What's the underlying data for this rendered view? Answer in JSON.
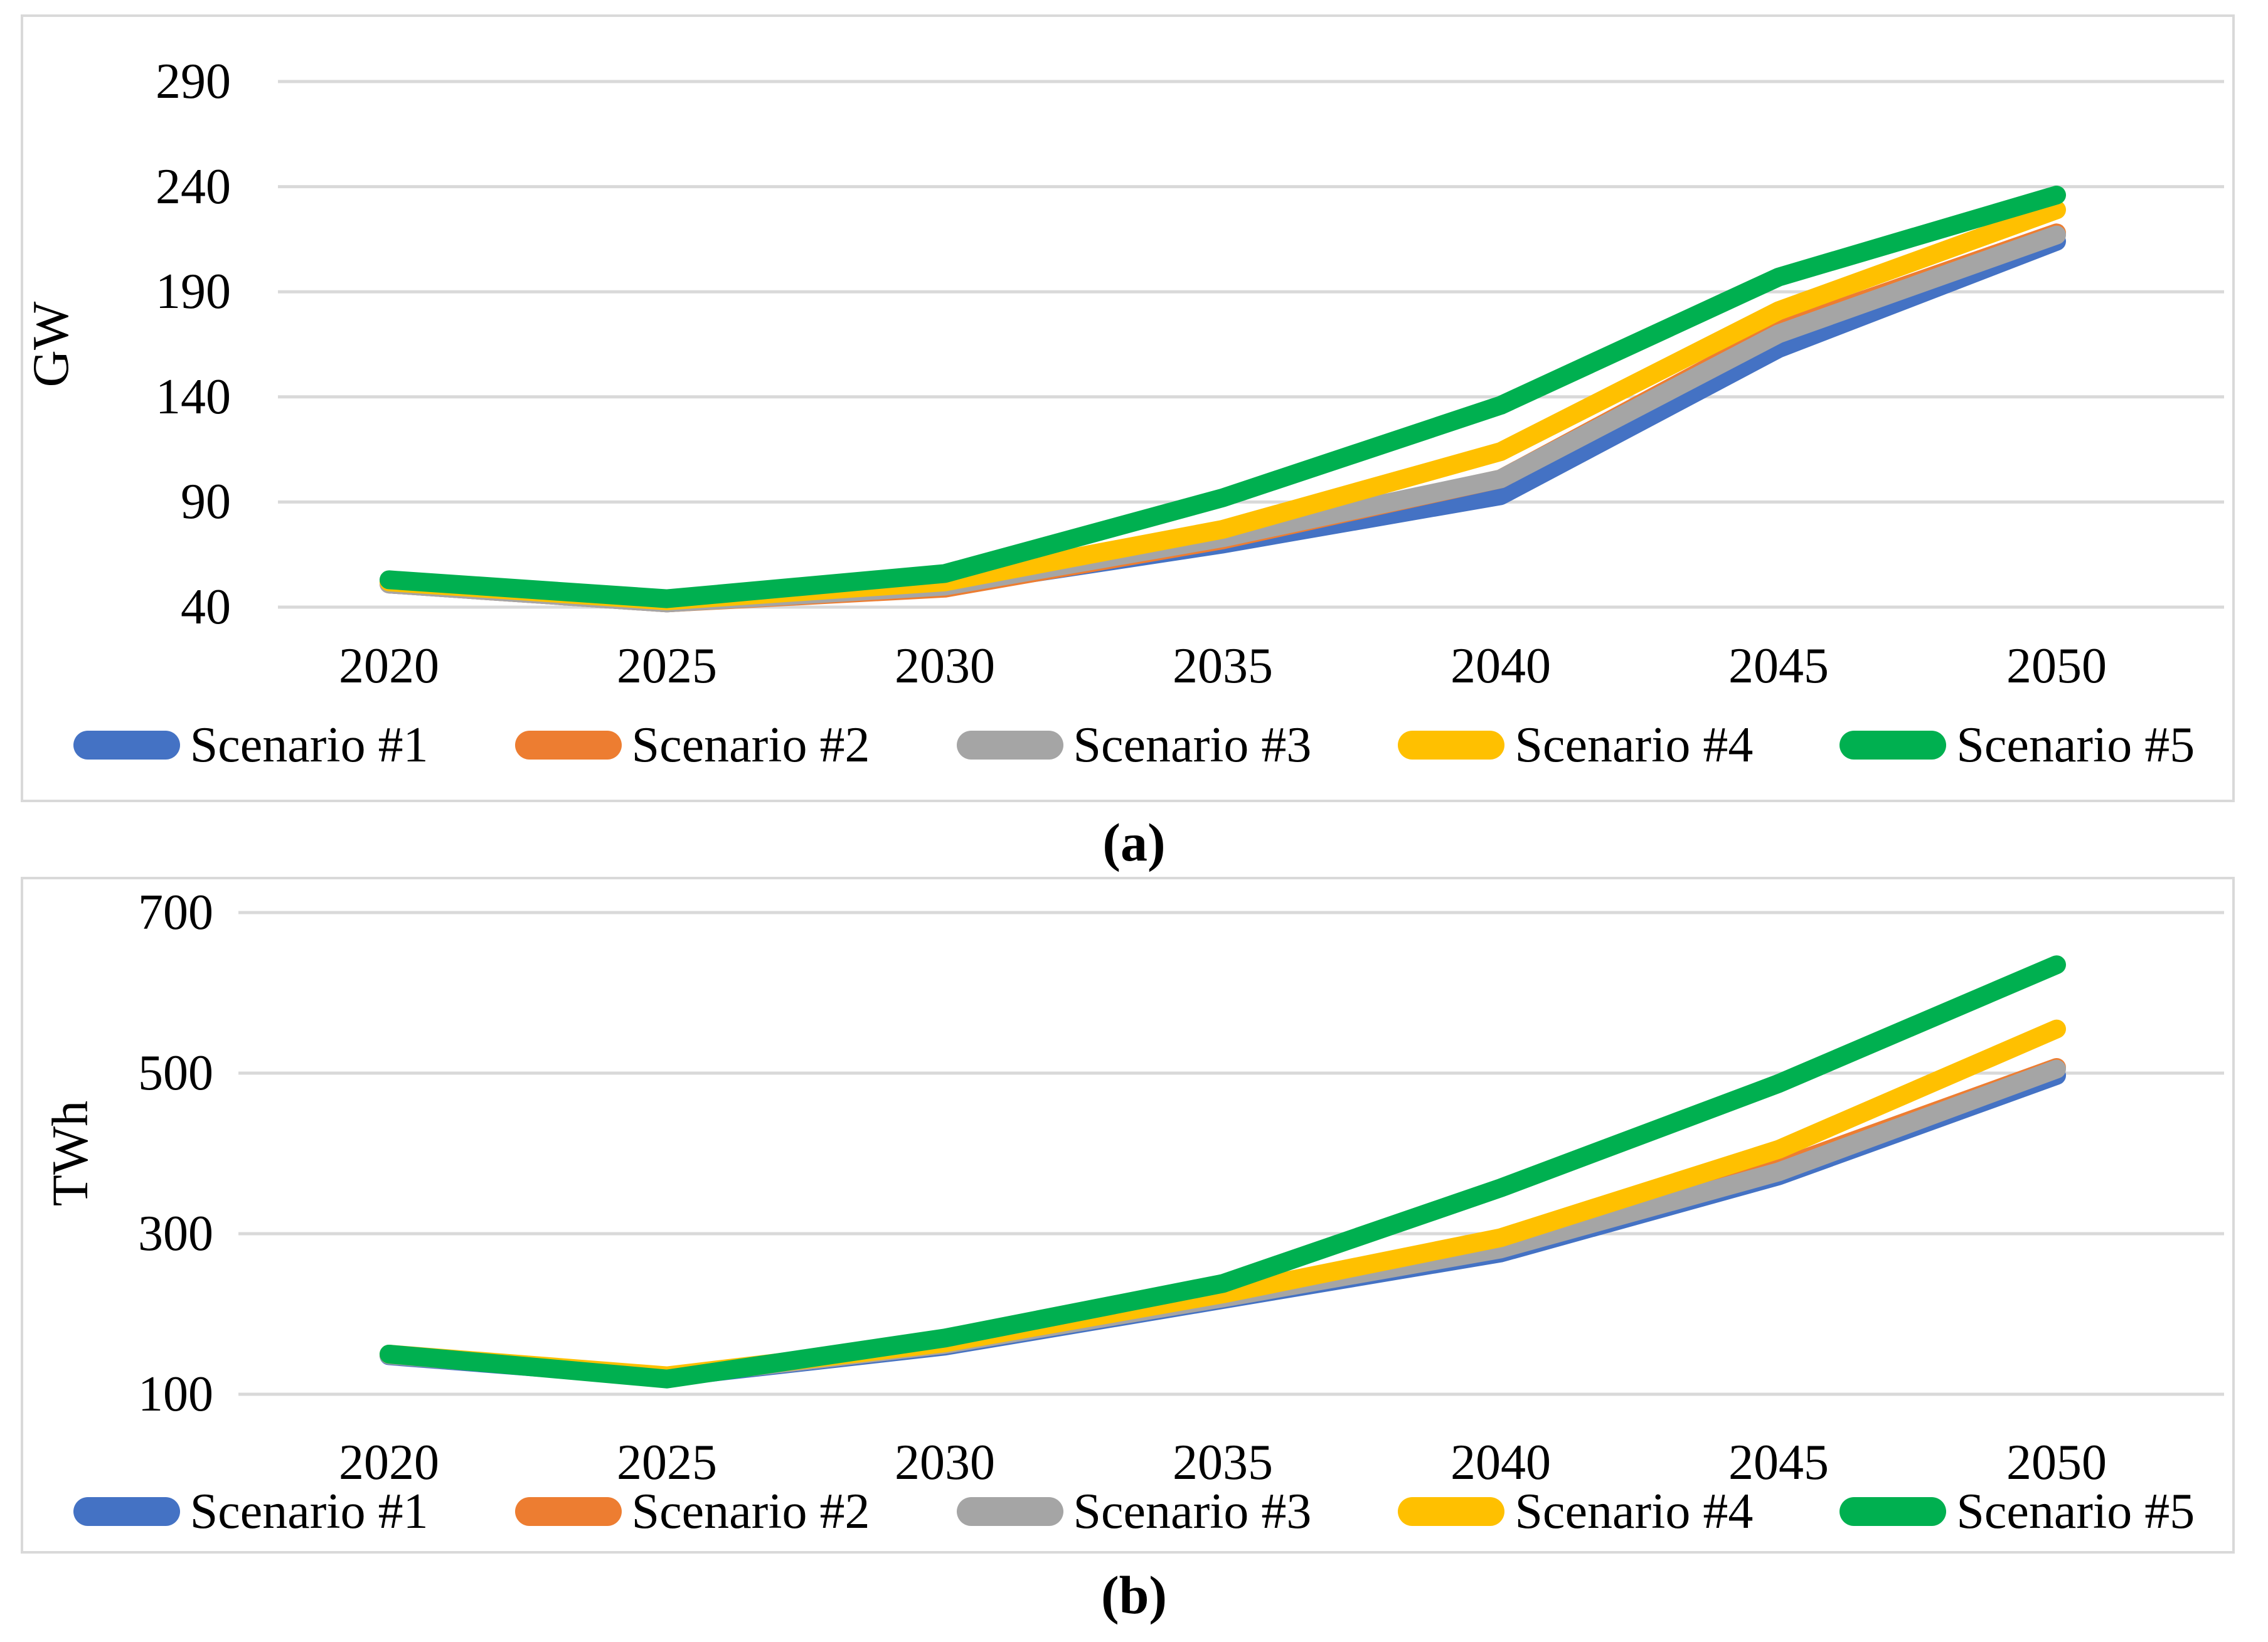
{
  "styles": {
    "background": "#FFFFFF",
    "grid_color": "#D9D9D9",
    "border_color": "#D9D9D9",
    "text_color": "#000000"
  },
  "chart_data": [
    {
      "id": "a",
      "type": "line",
      "caption": "(a)",
      "ylabel": "GW",
      "xlabel": "",
      "categories": [
        "2020",
        "2025",
        "2030",
        "2035",
        "2040",
        "2045",
        "2050"
      ],
      "yticks": [
        40,
        90,
        140,
        190,
        240,
        290
      ],
      "ylim": [
        40,
        290
      ],
      "grid": true,
      "legend_position": "bottom",
      "series": [
        {
          "name": "Scenario #1",
          "color": "#4472C4",
          "values": [
            51,
            42,
            50,
            70,
            93,
            163,
            214
          ]
        },
        {
          "name": "Scenario #2",
          "color": "#ED7D31",
          "values": [
            51,
            42,
            49,
            72,
            101,
            172,
            218
          ]
        },
        {
          "name": "Scenario #3",
          "color": "#A5A5A5",
          "values": [
            51,
            42,
            50,
            73,
            101,
            170,
            217
          ]
        },
        {
          "name": "Scenario #4",
          "color": "#FFC000",
          "values": [
            52,
            43,
            52,
            77,
            114,
            181,
            229
          ]
        },
        {
          "name": "Scenario #5",
          "color": "#00B050",
          "values": [
            53,
            44,
            56,
            92,
            136,
            197,
            236
          ]
        }
      ]
    },
    {
      "id": "b",
      "type": "line",
      "caption": "(b)",
      "ylabel": "TWh",
      "xlabel": "",
      "categories": [
        "2020",
        "2025",
        "2030",
        "2035",
        "2040",
        "2045",
        "2050"
      ],
      "yticks": [
        100,
        300,
        500,
        700
      ],
      "ylim": [
        100,
        700
      ],
      "grid": true,
      "legend_position": "bottom",
      "series": [
        {
          "name": "Scenario #1",
          "color": "#4472C4",
          "values": [
            148,
            121,
            160,
            218,
            276,
            372,
            497
          ]
        },
        {
          "name": "Scenario #2",
          "color": "#ED7D31",
          "values": [
            149,
            122,
            162,
            221,
            287,
            382,
            507
          ]
        },
        {
          "name": "Scenario #3",
          "color": "#A5A5A5",
          "values": [
            149,
            122,
            162,
            220,
            281,
            377,
            505
          ]
        },
        {
          "name": "Scenario #4",
          "color": "#FFC000",
          "values": [
            150,
            123,
            164,
            225,
            295,
            405,
            555
          ]
        },
        {
          "name": "Scenario #5",
          "color": "#00B050",
          "values": [
            150,
            119,
            170,
            238,
            357,
            487,
            635
          ]
        }
      ]
    }
  ]
}
